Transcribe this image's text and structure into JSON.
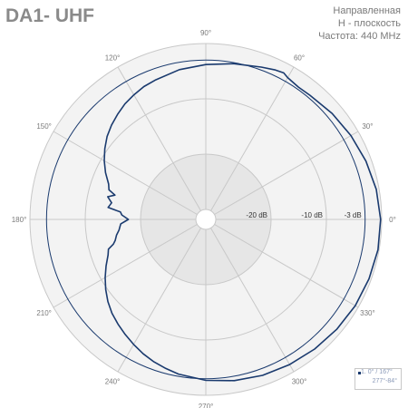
{
  "title": "DA1- UHF",
  "info": [
    "Направленная",
    "H - плоскость",
    "Частота: 440 MHz"
  ],
  "legend": {
    "line1": "1. 0° / 167°",
    "line2": "277°-84°"
  },
  "colors": {
    "series": "#1a3a6e",
    "grid": "#c8c8c8",
    "zone_outer": "#f3f3f3",
    "zone_inner": "#e6e6e6",
    "label": "#7a7a7a"
  },
  "chart_data": {
    "type": "polar",
    "title": "DA1- UHF",
    "subtitle": [
      "Направленная",
      "H - плоскость",
      "Частота: 440 MHz"
    ],
    "angle_ticks": [
      0,
      30,
      60,
      90,
      120,
      150,
      180,
      210,
      240,
      270,
      300,
      330
    ],
    "angle_tick_labels": [
      "0°",
      "30°",
      "60°",
      "90°",
      "120°",
      "150°",
      "180°",
      "210°",
      "240°",
      "270°",
      "300°",
      "330°"
    ],
    "radial_labels": [
      "-3 dB",
      "-10 dB",
      "-20 dB"
    ],
    "radial_db": [
      -3,
      -10,
      -20
    ],
    "r_range_db": [
      -30,
      0
    ],
    "grid": true,
    "series": [
      {
        "angles_deg": [
          0,
          10,
          20,
          30,
          40,
          50,
          55,
          60,
          62,
          65,
          70,
          80,
          90,
          100,
          110,
          115,
          120,
          125,
          130,
          135,
          140,
          145,
          150,
          155,
          160,
          163,
          165,
          167,
          170,
          173,
          175,
          177,
          180,
          183,
          185,
          187,
          190,
          193,
          195,
          197,
          200,
          205,
          210,
          215,
          220,
          225,
          230,
          235,
          240,
          245,
          250,
          255,
          260,
          270,
          280,
          290,
          300,
          310,
          320,
          330,
          340,
          350
        ],
        "gain_db": [
          -0.2,
          -0.5,
          -1.0,
          -1.5,
          -2.0,
          -2.5,
          -2.6,
          -2.2,
          -1.8,
          -2.0,
          -2.5,
          -3.2,
          -3.8,
          -4.3,
          -5.0,
          -5.3,
          -5.8,
          -6.3,
          -7.0,
          -7.7,
          -8.5,
          -9.5,
          -10.6,
          -11.8,
          -13.1,
          -13.5,
          -14.8,
          -13.6,
          -14.5,
          -14.0,
          -16.3,
          -16.6,
          -17.8,
          -16.4,
          -16.2,
          -16.0,
          -15.4,
          -15.0,
          -14.5,
          -13.4,
          -13.0,
          -11.9,
          -10.8,
          -9.7,
          -8.7,
          -7.8,
          -7.1,
          -6.4,
          -5.7,
          -5.0,
          -4.4,
          -3.9,
          -3.4,
          -2.7,
          -2.2,
          -1.8,
          -1.5,
          -1.2,
          -0.9,
          -0.6,
          -0.4,
          -0.2
        ]
      },
      {
        "type": "reference_circle",
        "gain_db": -3
      }
    ]
  }
}
